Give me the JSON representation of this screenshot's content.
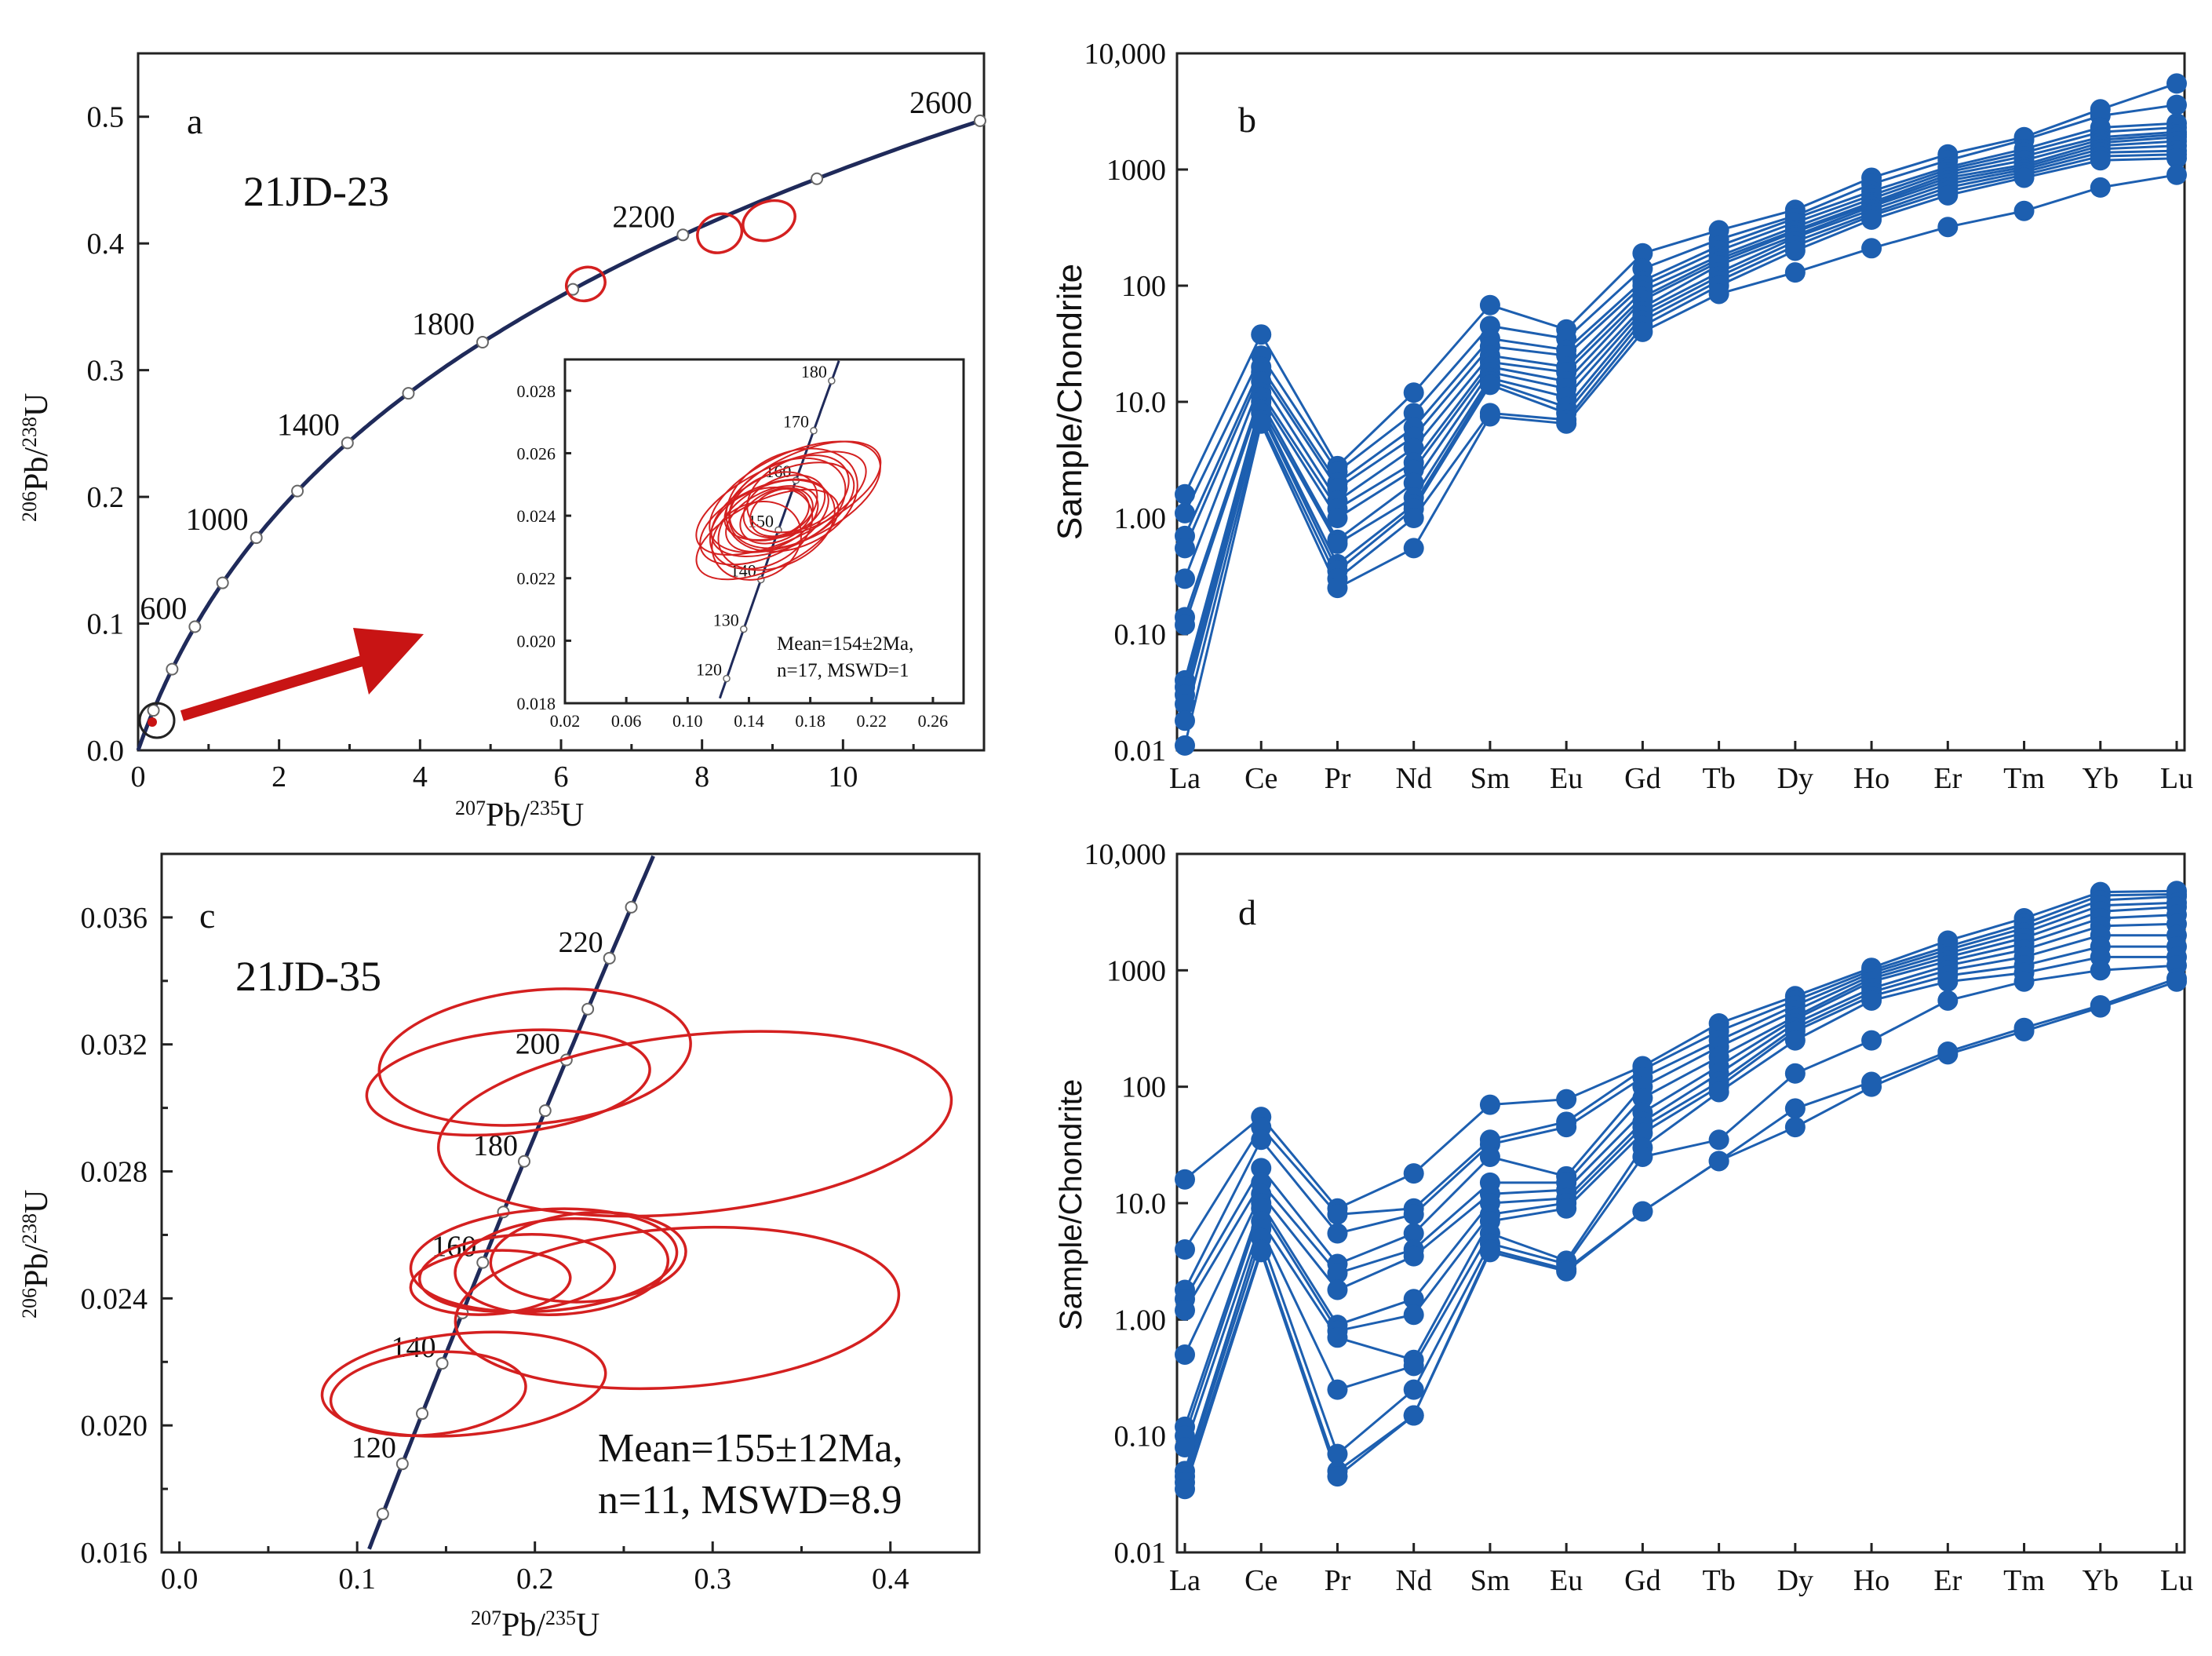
{
  "chart_data": [
    {
      "id": "a",
      "type": "scatter",
      "subtype": "concordia",
      "panel_label": "a",
      "sample": "21JD-23",
      "xlabel": "207Pb/235U",
      "ylabel": "206Pb/238U",
      "xlim": [
        0,
        12
      ],
      "ylim": [
        0,
        0.55
      ],
      "x_ticks": [
        "0",
        "2",
        "4",
        "6",
        "8",
        "10"
      ],
      "y_ticks": [
        "0.0",
        "0.1",
        "0.2",
        "0.3",
        "0.4",
        "0.5"
      ],
      "concordia_age_labels": [
        "600",
        "1000",
        "1400",
        "1800",
        "2200",
        "2600"
      ],
      "ellipses": [
        {
          "x": 6.35,
          "y": 0.368,
          "rx": 0.28,
          "ry": 0.013
        },
        {
          "x": 8.25,
          "y": 0.408,
          "rx": 0.32,
          "ry": 0.015
        },
        {
          "x": 8.95,
          "y": 0.418,
          "rx": 0.38,
          "ry": 0.015
        }
      ],
      "inset": {
        "xlim": [
          0.02,
          0.28
        ],
        "ylim": [
          0.018,
          0.029
        ],
        "x_ticks": [
          "0.02",
          "0.06",
          "0.10",
          "0.14",
          "0.18",
          "0.22",
          "0.26"
        ],
        "y_ticks": [
          "0.018",
          "0.020",
          "0.022",
          "0.024",
          "0.026",
          "0.028"
        ],
        "age_labels": [
          "120",
          "130",
          "140",
          "150",
          "160",
          "170",
          "180"
        ],
        "annotation_line1": "Mean=154±2Ma,",
        "annotation_line2": "n=17, MSWD=1",
        "ellipses": [
          {
            "x": 0.156,
            "y": 0.0243,
            "rx": 0.03,
            "ry": 0.001
          },
          {
            "x": 0.162,
            "y": 0.0242,
            "rx": 0.05,
            "ry": 0.0012
          },
          {
            "x": 0.17,
            "y": 0.0246,
            "rx": 0.06,
            "ry": 0.0014
          },
          {
            "x": 0.15,
            "y": 0.0238,
            "rx": 0.045,
            "ry": 0.0011
          },
          {
            "x": 0.158,
            "y": 0.024,
            "rx": 0.025,
            "ry": 0.0008
          },
          {
            "x": 0.165,
            "y": 0.0244,
            "rx": 0.04,
            "ry": 0.0013
          },
          {
            "x": 0.148,
            "y": 0.0236,
            "rx": 0.035,
            "ry": 0.0012
          },
          {
            "x": 0.175,
            "y": 0.0248,
            "rx": 0.055,
            "ry": 0.0012
          },
          {
            "x": 0.16,
            "y": 0.0241,
            "rx": 0.02,
            "ry": 0.0007
          },
          {
            "x": 0.155,
            "y": 0.0239,
            "rx": 0.032,
            "ry": 0.0009
          },
          {
            "x": 0.168,
            "y": 0.0245,
            "rx": 0.045,
            "ry": 0.0015
          },
          {
            "x": 0.152,
            "y": 0.0234,
            "rx": 0.05,
            "ry": 0.0011
          },
          {
            "x": 0.163,
            "y": 0.0243,
            "rx": 0.028,
            "ry": 0.0009
          },
          {
            "x": 0.172,
            "y": 0.0247,
            "rx": 0.035,
            "ry": 0.0011
          },
          {
            "x": 0.158,
            "y": 0.0237,
            "rx": 0.04,
            "ry": 0.0013
          },
          {
            "x": 0.161,
            "y": 0.0244,
            "rx": 0.06,
            "ry": 0.0012
          },
          {
            "x": 0.145,
            "y": 0.0232,
            "rx": 0.03,
            "ry": 0.0012
          }
        ]
      }
    },
    {
      "id": "b",
      "type": "line",
      "subtype": "REE spider diagram",
      "panel_label": "b",
      "ylabel": "Sample/Chondrite",
      "yscale": "log",
      "ylim": [
        0.01,
        10000
      ],
      "y_ticks": [
        "0.01",
        "0.10",
        "1.00",
        "10.0",
        "100",
        "1000",
        "10,000"
      ],
      "categories": [
        "La",
        "Ce",
        "Pr",
        "Nd",
        "Sm",
        "Eu",
        "Gd",
        "Tb",
        "Dy",
        "Ho",
        "Er",
        "Tm",
        "Yb",
        "Lu"
      ],
      "series": [
        {
          "values": [
            1.6,
            38,
            2.8,
            12,
            68,
            42,
            190,
            300,
            450,
            850,
            1350,
            1900,
            3300,
            5500
          ]
        },
        {
          "values": [
            1.1,
            25,
            2.5,
            8,
            45,
            35,
            140,
            250,
            400,
            750,
            1200,
            1800,
            2900,
            3600
          ]
        },
        {
          "values": [
            0.7,
            20,
            2.0,
            6,
            35,
            28,
            110,
            220,
            380,
            650,
            1050,
            1500,
            2300,
            2500
          ]
        },
        {
          "values": [
            0.55,
            18,
            1.8,
            5,
            30,
            25,
            100,
            200,
            350,
            600,
            1000,
            1400,
            2100,
            2300
          ]
        },
        {
          "values": [
            0.3,
            15,
            1.4,
            4,
            25,
            20,
            90,
            180,
            320,
            560,
            950,
            1300,
            1900,
            2100
          ]
        },
        {
          "values": [
            0.14,
            12,
            1.2,
            3,
            22,
            18,
            80,
            170,
            300,
            520,
            900,
            1200,
            1800,
            2000
          ]
        },
        {
          "values": [
            0.12,
            11,
            1.0,
            2.6,
            20,
            15,
            75,
            160,
            290,
            500,
            850,
            1100,
            1700,
            1900
          ]
        },
        {
          "values": [
            0.04,
            10,
            0.65,
            2.0,
            18,
            13,
            65,
            150,
            270,
            480,
            800,
            1050,
            1600,
            1750
          ]
        },
        {
          "values": [
            0.035,
            9,
            0.6,
            1.5,
            16,
            11,
            60,
            130,
            260,
            450,
            750,
            1000,
            1500,
            1600
          ]
        },
        {
          "values": [
            0.03,
            8.5,
            0.4,
            1.3,
            15,
            9,
            55,
            120,
            240,
            420,
            700,
            950,
            1400,
            1450
          ]
        },
        {
          "values": [
            0.025,
            8,
            0.35,
            1.2,
            14,
            8,
            50,
            110,
            220,
            400,
            650,
            900,
            1300,
            1350
          ]
        },
        {
          "values": [
            0.018,
            7,
            0.3,
            1.0,
            8,
            7,
            45,
            100,
            200,
            370,
            600,
            850,
            1200,
            1250
          ]
        },
        {
          "values": [
            0.011,
            6.5,
            0.25,
            0.55,
            7.5,
            6.5,
            40,
            85,
            130,
            210,
            320,
            440,
            700,
            900
          ]
        }
      ]
    },
    {
      "id": "c",
      "type": "scatter",
      "subtype": "concordia",
      "panel_label": "c",
      "sample": "21JD-35",
      "xlabel": "207Pb/235U",
      "ylabel": "206Pb/238U",
      "xlim": [
        -0.01,
        0.45
      ],
      "ylim": [
        0.016,
        0.038
      ],
      "x_ticks": [
        "0.0",
        "0.1",
        "0.2",
        "0.3",
        "0.4"
      ],
      "y_ticks": [
        "0.016",
        "0.020",
        "0.024",
        "0.028",
        "0.032",
        "0.036"
      ],
      "concordia_age_labels": [
        "120",
        "140",
        "160",
        "180",
        "200",
        "220"
      ],
      "annotation_line1": "Mean=155±12Ma,",
      "annotation_line2": "n=11, MSWD=8.9",
      "ellipses": [
        {
          "x": 0.2,
          "y": 0.0316,
          "rx": 0.088,
          "ry": 0.0021,
          "rot": -6
        },
        {
          "x": 0.185,
          "y": 0.0308,
          "rx": 0.08,
          "ry": 0.0016,
          "rot": -6
        },
        {
          "x": 0.29,
          "y": 0.0295,
          "rx": 0.145,
          "ry": 0.0028,
          "rot": -6
        },
        {
          "x": 0.205,
          "y": 0.0252,
          "rx": 0.075,
          "ry": 0.0016,
          "rot": -4
        },
        {
          "x": 0.215,
          "y": 0.025,
          "rx": 0.06,
          "ry": 0.0015,
          "rot": -4
        },
        {
          "x": 0.23,
          "y": 0.0253,
          "rx": 0.055,
          "ry": 0.0014,
          "rot": -4
        },
        {
          "x": 0.19,
          "y": 0.0248,
          "rx": 0.055,
          "ry": 0.0012,
          "rot": -4
        },
        {
          "x": 0.175,
          "y": 0.0245,
          "rx": 0.045,
          "ry": 0.001,
          "rot": -4
        },
        {
          "x": 0.28,
          "y": 0.0237,
          "rx": 0.125,
          "ry": 0.0025,
          "rot": -4
        },
        {
          "x": 0.16,
          "y": 0.0213,
          "rx": 0.08,
          "ry": 0.0016,
          "rot": -5
        },
        {
          "x": 0.14,
          "y": 0.021,
          "rx": 0.055,
          "ry": 0.0013,
          "rot": -5
        }
      ]
    },
    {
      "id": "d",
      "type": "line",
      "subtype": "REE spider diagram",
      "panel_label": "d",
      "ylabel": "Sample/Chondrite",
      "yscale": "log",
      "ylim": [
        0.01,
        10000
      ],
      "y_ticks": [
        "0.01",
        "0.10",
        "1.00",
        "10.0",
        "100",
        "1000",
        "10,000"
      ],
      "categories": [
        "La",
        "Ce",
        "Pr",
        "Nd",
        "Sm",
        "Eu",
        "Gd",
        "Tb",
        "Dy",
        "Ho",
        "Er",
        "Tm",
        "Yb",
        "Lu"
      ],
      "series": [
        {
          "values": [
            16,
            55,
            9,
            18,
            70,
            78,
            150,
            350,
            600,
            1050,
            1800,
            2800,
            4700,
            4800
          ]
        },
        {
          "values": [
            4,
            45,
            8,
            9,
            35,
            50,
            140,
            300,
            550,
            1000,
            1600,
            2500,
            4400,
            4500
          ]
        },
        {
          "values": [
            1.8,
            35,
            5.5,
            8,
            32,
            45,
            120,
            250,
            500,
            950,
            1500,
            2300,
            4000,
            4300
          ]
        },
        {
          "values": [
            1.5,
            20,
            3,
            5.5,
            25,
            17,
            100,
            220,
            450,
            900,
            1400,
            2100,
            3600,
            3800
          ]
        },
        {
          "values": [
            1.2,
            15,
            2.5,
            4,
            15,
            15,
            80,
            180,
            400,
            850,
            1300,
            1900,
            3200,
            3500
          ]
        },
        {
          "values": [
            0.5,
            12,
            1.8,
            3.5,
            12,
            13,
            60,
            150,
            380,
            800,
            1200,
            1700,
            2800,
            3000
          ]
        },
        {
          "values": [
            0.12,
            10,
            0.9,
            1.5,
            10,
            11,
            50,
            130,
            350,
            700,
            1100,
            1500,
            2400,
            2500
          ]
        },
        {
          "values": [
            0.1,
            9,
            0.8,
            1.1,
            8,
            10,
            45,
            110,
            320,
            650,
            1000,
            1300,
            2000,
            2000
          ]
        },
        {
          "values": [
            0.08,
            7,
            0.7,
            0.45,
            7,
            9,
            40,
            100,
            300,
            600,
            900,
            1100,
            1600,
            1600
          ]
        },
        {
          "values": [
            0.05,
            6,
            0.25,
            0.4,
            5.5,
            3.2,
            30,
            90,
            250,
            550,
            800,
            950,
            1300,
            1300
          ]
        },
        {
          "values": [
            0.045,
            5,
            0.07,
            0.25,
            4.5,
            3,
            25,
            35,
            130,
            250,
            550,
            800,
            1000,
            1100
          ]
        },
        {
          "values": [
            0.04,
            4,
            0.05,
            0.15,
            4,
            2.7,
            8.5,
            23,
            65,
            110,
            200,
            320,
            500,
            850
          ]
        },
        {
          "values": [
            0.035,
            3.8,
            0.045,
            0.15,
            3.8,
            2.6,
            8.5,
            23,
            45,
            100,
            190,
            300,
            480,
            800
          ]
        }
      ]
    }
  ]
}
